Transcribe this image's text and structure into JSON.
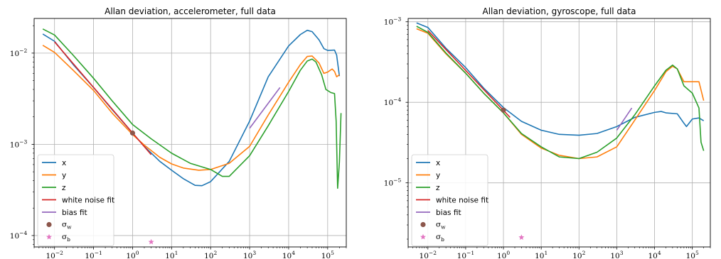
{
  "chart_data": [
    {
      "type": "line",
      "title": "Allan deviation, accelerometer, full data",
      "xscale": "log",
      "yscale": "log",
      "xlim": [
        0.003,
        300000
      ],
      "ylim": [
        7.5e-05,
        0.024
      ],
      "grid": true,
      "legend_position": "lower-left",
      "x_ticks": [
        {
          "base": "10",
          "exp": "−2",
          "value": 0.01
        },
        {
          "base": "10",
          "exp": "−1",
          "value": 0.1
        },
        {
          "base": "10",
          "exp": "0",
          "value": 1
        },
        {
          "base": "10",
          "exp": "1",
          "value": 10
        },
        {
          "base": "10",
          "exp": "2",
          "value": 100
        },
        {
          "base": "10",
          "exp": "3",
          "value": 1000
        },
        {
          "base": "10",
          "exp": "4",
          "value": 10000
        },
        {
          "base": "10",
          "exp": "5",
          "value": 100000
        }
      ],
      "y_ticks": [
        {
          "base": "10",
          "exp": "−4",
          "value": 0.0001
        },
        {
          "base": "10",
          "exp": "−3",
          "value": 0.001
        },
        {
          "base": "10",
          "exp": "−2",
          "value": 0.01
        }
      ],
      "series": [
        {
          "name": "x",
          "color": "#1f77b4",
          "points": [
            [
              0.005,
              0.0162
            ],
            [
              0.01,
              0.0135
            ],
            [
              0.03,
              0.0075
            ],
            [
              0.1,
              0.0042
            ],
            [
              0.3,
              0.0024
            ],
            [
              1,
              0.00133
            ],
            [
              2,
              0.00095
            ],
            [
              5,
              0.00065
            ],
            [
              10,
              0.00052
            ],
            [
              20,
              0.00042
            ],
            [
              40,
              0.000355
            ],
            [
              60,
              0.000352
            ],
            [
              100,
              0.00039
            ],
            [
              300,
              0.00065
            ],
            [
              1000,
              0.0018
            ],
            [
              3000,
              0.0055
            ],
            [
              10000,
              0.012
            ],
            [
              20000,
              0.016
            ],
            [
              30000,
              0.0178
            ],
            [
              40000,
              0.0172
            ],
            [
              60000,
              0.014
            ],
            [
              80000,
              0.0112
            ],
            [
              100000,
              0.0107
            ],
            [
              150000,
              0.0108
            ],
            [
              170000,
              0.0095
            ],
            [
              200000,
              0.0056
            ]
          ]
        },
        {
          "name": "y",
          "color": "#ff7f0e",
          "points": [
            [
              0.005,
              0.0122
            ],
            [
              0.01,
              0.0102
            ],
            [
              0.03,
              0.0065
            ],
            [
              0.1,
              0.0039
            ],
            [
              0.3,
              0.0022
            ],
            [
              1,
              0.00128
            ],
            [
              2,
              0.00098
            ],
            [
              5,
              0.00072
            ],
            [
              10,
              0.00061
            ],
            [
              20,
              0.00055
            ],
            [
              50,
              0.00052
            ],
            [
              100,
              0.00053
            ],
            [
              300,
              0.00062
            ],
            [
              1000,
              0.00095
            ],
            [
              3000,
              0.0021
            ],
            [
              10000,
              0.0048
            ],
            [
              20000,
              0.0075
            ],
            [
              30000,
              0.0092
            ],
            [
              40000,
              0.0093
            ],
            [
              60000,
              0.0078
            ],
            [
              80000,
              0.006
            ],
            [
              100000,
              0.0062
            ],
            [
              130000,
              0.0067
            ],
            [
              150000,
              0.0063
            ],
            [
              170000,
              0.0055
            ],
            [
              200000,
              0.0058
            ]
          ]
        },
        {
          "name": "z",
          "color": "#2ca02c",
          "points": [
            [
              0.005,
              0.0184
            ],
            [
              0.01,
              0.0158
            ],
            [
              0.03,
              0.0095
            ],
            [
              0.1,
              0.0053
            ],
            [
              0.3,
              0.003
            ],
            [
              1,
              0.00165
            ],
            [
              3,
              0.00115
            ],
            [
              10,
              0.0008
            ],
            [
              30,
              0.00062
            ],
            [
              100,
              0.00053
            ],
            [
              200,
              0.000445
            ],
            [
              300,
              0.000445
            ],
            [
              1000,
              0.00075
            ],
            [
              3000,
              0.0016
            ],
            [
              10000,
              0.0038
            ],
            [
              20000,
              0.0065
            ],
            [
              30000,
              0.0082
            ],
            [
              40000,
              0.0086
            ],
            [
              50000,
              0.008
            ],
            [
              70000,
              0.0058
            ],
            [
              90000,
              0.004
            ],
            [
              120000,
              0.0037
            ],
            [
              150000,
              0.0036
            ],
            [
              165000,
              0.0018
            ],
            [
              180000,
              0.00033
            ],
            [
              200000,
              0.00064
            ],
            [
              220000,
              0.0022
            ]
          ]
        },
        {
          "name": "white noise fit",
          "color": "#d62728",
          "points": [
            [
              0.01,
              0.0133
            ],
            [
              3,
              0.00077
            ]
          ]
        },
        {
          "name": "bias fit",
          "color": "#9467bd",
          "points": [
            [
              1000,
              0.0015
            ],
            [
              6000,
              0.0042
            ]
          ]
        }
      ],
      "markers": [
        {
          "name": "σ_w",
          "label_base": "σ",
          "label_sub": "w",
          "color": "#8c564b",
          "shape": "circle",
          "x": 1,
          "y": 0.00133
        },
        {
          "name": "σ_b",
          "label_base": "σ",
          "label_sub": "b",
          "color": "#e377c2",
          "shape": "star",
          "x": 3,
          "y": 8.5e-05
        }
      ]
    },
    {
      "type": "line",
      "title": "Allan deviation, gyroscope, full data",
      "xscale": "log",
      "yscale": "log",
      "xlim": [
        0.003,
        300000
      ],
      "ylim": [
        1.6e-06,
        0.0011
      ],
      "grid": true,
      "legend_position": "lower-left",
      "x_ticks": [
        {
          "base": "10",
          "exp": "−2",
          "value": 0.01
        },
        {
          "base": "10",
          "exp": "−1",
          "value": 0.1
        },
        {
          "base": "10",
          "exp": "0",
          "value": 1
        },
        {
          "base": "10",
          "exp": "1",
          "value": 10
        },
        {
          "base": "10",
          "exp": "2",
          "value": 100
        },
        {
          "base": "10",
          "exp": "3",
          "value": 1000
        },
        {
          "base": "10",
          "exp": "4",
          "value": 10000
        },
        {
          "base": "10",
          "exp": "5",
          "value": 100000
        }
      ],
      "y_ticks": [
        {
          "base": "10",
          "exp": "−5",
          "value": 1e-05
        },
        {
          "base": "10",
          "exp": "−4",
          "value": 0.0001
        },
        {
          "base": "10",
          "exp": "−3",
          "value": 0.001
        }
      ],
      "series": [
        {
          "name": "x",
          "color": "#1f77b4",
          "points": [
            [
              0.005,
              0.00097
            ],
            [
              0.01,
              0.00085
            ],
            [
              0.03,
              0.00047
            ],
            [
              0.1,
              0.00027
            ],
            [
              0.3,
              0.00015
            ],
            [
              1,
              8.6e-05
            ],
            [
              3,
              5.8e-05
            ],
            [
              10,
              4.5e-05
            ],
            [
              30,
              4e-05
            ],
            [
              100,
              3.9e-05
            ],
            [
              300,
              4.1e-05
            ],
            [
              1000,
              5e-05
            ],
            [
              3000,
              6.5e-05
            ],
            [
              10000,
              7.5e-05
            ],
            [
              15000,
              7.7e-05
            ],
            [
              20000,
              7.4e-05
            ],
            [
              40000,
              7.2e-05
            ],
            [
              60000,
              5.5e-05
            ],
            [
              70000,
              5e-05
            ],
            [
              100000,
              6.2e-05
            ],
            [
              150000,
              6.4e-05
            ],
            [
              200000,
              5.9e-05
            ]
          ]
        },
        {
          "name": "y",
          "color": "#ff7f0e",
          "points": [
            [
              0.005,
              0.00082
            ],
            [
              0.01,
              0.00072
            ],
            [
              0.03,
              0.0004
            ],
            [
              0.1,
              0.00023
            ],
            [
              0.3,
              0.00013
            ],
            [
              1,
              7.4e-05
            ],
            [
              3,
              4e-05
            ],
            [
              10,
              2.7e-05
            ],
            [
              30,
              2.2e-05
            ],
            [
              100,
              2e-05
            ],
            [
              300,
              2.1e-05
            ],
            [
              1000,
              2.8e-05
            ],
            [
              3000,
              6e-05
            ],
            [
              10000,
              0.00014
            ],
            [
              20000,
              0.00024
            ],
            [
              30000,
              0.00028
            ],
            [
              40000,
              0.00026
            ],
            [
              60000,
              0.00018
            ],
            [
              100000,
              0.00018
            ],
            [
              150000,
              0.00018
            ],
            [
              200000,
              0.000105
            ]
          ]
        },
        {
          "name": "z",
          "color": "#2ca02c",
          "points": [
            [
              0.005,
              0.00088
            ],
            [
              0.01,
              0.00074
            ],
            [
              0.03,
              0.00041
            ],
            [
              0.1,
              0.00023
            ],
            [
              0.3,
              0.00013
            ],
            [
              1,
              7.4e-05
            ],
            [
              3,
              4.1e-05
            ],
            [
              10,
              2.8e-05
            ],
            [
              30,
              2.1e-05
            ],
            [
              100,
              2e-05
            ],
            [
              300,
              2.4e-05
            ],
            [
              1000,
              3.6e-05
            ],
            [
              3000,
              7e-05
            ],
            [
              10000,
              0.00016
            ],
            [
              20000,
              0.00025
            ],
            [
              30000,
              0.00029
            ],
            [
              40000,
              0.00026
            ],
            [
              60000,
              0.00016
            ],
            [
              100000,
              0.00013
            ],
            [
              150000,
              8.5e-05
            ],
            [
              170000,
              3.2e-05
            ],
            [
              200000,
              2.5e-05
            ]
          ]
        },
        {
          "name": "white noise fit",
          "color": "#d62728",
          "points": [
            [
              0.01,
              0.00078
            ],
            [
              1.5,
              6.5e-05
            ]
          ]
        },
        {
          "name": "bias fit",
          "color": "#9467bd",
          "points": [
            [
              1000,
              4.5e-05
            ],
            [
              2500,
              8.5e-05
            ]
          ]
        }
      ],
      "markers": [
        {
          "name": "σ_w",
          "label_base": "σ",
          "label_sub": "w",
          "color": "#8c564b",
          "shape": "circle",
          "x": 1,
          "y": 8e-05
        },
        {
          "name": "σ_b",
          "label_base": "σ",
          "label_sub": "b",
          "color": "#e377c2",
          "shape": "star",
          "x": 3,
          "y": 2.1e-06
        }
      ]
    }
  ]
}
